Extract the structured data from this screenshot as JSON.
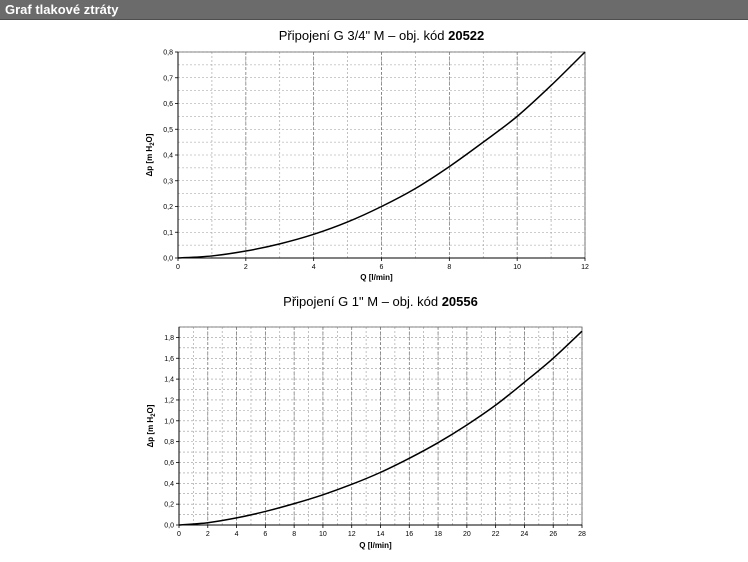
{
  "header": {
    "title": "Graf tlakové ztráty"
  },
  "chart_data": [
    {
      "type": "line",
      "title_prefix": "Připojení G 3/4\" M – obj. kód ",
      "title_code": "20522",
      "xlabel": "Q [l/min]",
      "ylabel_parts": [
        "Δp [m H",
        "2",
        "O]"
      ],
      "xlim": [
        0,
        12
      ],
      "ylim": [
        0,
        0.8
      ],
      "x_ticks": [
        0,
        2,
        4,
        6,
        8,
        10,
        12
      ],
      "x_tick_labels": [
        "0",
        "2",
        "4",
        "6",
        "8",
        "10",
        "12"
      ],
      "y_ticks": [
        0,
        0.1,
        0.2,
        0.3,
        0.4,
        0.5,
        0.6,
        0.7,
        0.8
      ],
      "y_tick_labels": [
        "0,0",
        "0,1",
        "0,2",
        "0,3",
        "0,4",
        "0,5",
        "0,6",
        "0,7",
        "0,8"
      ],
      "x_minor_step": 1,
      "y_minor_step": 0.05,
      "grid": true,
      "series": [
        {
          "x": [
            0,
            1,
            2,
            3,
            4,
            5,
            6,
            7,
            8,
            9,
            10,
            11,
            12
          ],
          "values": [
            0,
            0.008,
            0.027,
            0.055,
            0.092,
            0.14,
            0.2,
            0.27,
            0.355,
            0.45,
            0.55,
            0.67,
            0.8
          ]
        }
      ]
    },
    {
      "type": "line",
      "title_prefix": "Připojení G 1\" M – obj. kód ",
      "title_code": "20556",
      "xlabel": "Q [l/min]",
      "ylabel_parts": [
        "Δp [m H",
        "2",
        "O]"
      ],
      "xlim": [
        0,
        28
      ],
      "ylim": [
        0,
        1.9
      ],
      "x_ticks": [
        0,
        2,
        4,
        6,
        8,
        10,
        12,
        14,
        16,
        18,
        20,
        22,
        24,
        26,
        28
      ],
      "x_tick_labels": [
        "0",
        "2",
        "4",
        "6",
        "8",
        "10",
        "12",
        "14",
        "16",
        "18",
        "20",
        "22",
        "24",
        "26",
        "28"
      ],
      "y_ticks": [
        0,
        0.2,
        0.4,
        0.6,
        0.8,
        1.0,
        1.2,
        1.4,
        1.6,
        1.8
      ],
      "y_tick_labels": [
        "0,0",
        "0,2",
        "0,4",
        "0,6",
        "0,8",
        "1,0",
        "1,2",
        "1,4",
        "1,6",
        "1,8"
      ],
      "x_minor_step": 1,
      "y_minor_step": 0.1,
      "grid": true,
      "series": [
        {
          "x": [
            0,
            2,
            4,
            6,
            8,
            10,
            12,
            14,
            16,
            18,
            20,
            22,
            24,
            26,
            28
          ],
          "values": [
            0,
            0.022,
            0.068,
            0.13,
            0.205,
            0.29,
            0.39,
            0.505,
            0.64,
            0.79,
            0.96,
            1.15,
            1.37,
            1.6,
            1.86
          ]
        }
      ]
    }
  ]
}
